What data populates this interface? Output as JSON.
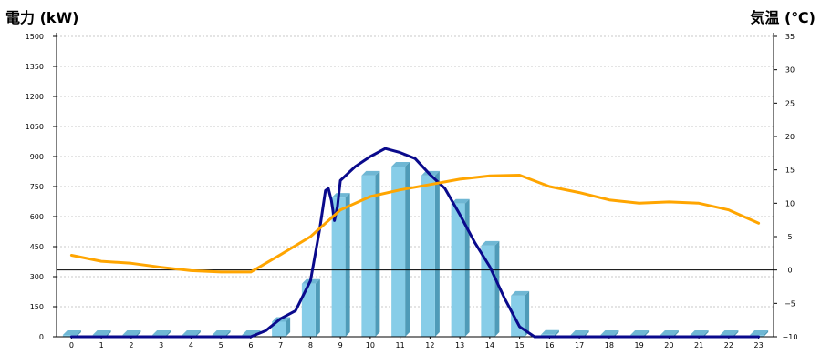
{
  "chart_data": {
    "type": "bar",
    "left_axis_title": "電力 (kW)",
    "right_axis_title": "気温 (℃)",
    "categories": [
      "0",
      "1",
      "2",
      "3",
      "4",
      "5",
      "6",
      "7",
      "8",
      "9",
      "10",
      "11",
      "12",
      "13",
      "14",
      "15",
      "16",
      "17",
      "18",
      "19",
      "20",
      "21",
      "22",
      "23"
    ],
    "y_left_ticks": [
      "0",
      "150",
      "300",
      "450",
      "600",
      "750",
      "900",
      "1050",
      "1200",
      "1350",
      "1500"
    ],
    "y_right_ticks": [
      "−10",
      "−5",
      "0",
      "5",
      "10",
      "15",
      "20",
      "25",
      "30",
      "35"
    ],
    "ylim_left": [
      0,
      1500
    ],
    "ylim_right": [
      -10,
      35
    ],
    "grid": true,
    "series": [
      {
        "kind": "bar",
        "axis": "left",
        "values": [
          0,
          0,
          0,
          0,
          0,
          0,
          0,
          75,
          265,
          695,
          805,
          850,
          805,
          665,
          455,
          205,
          10,
          0,
          0,
          0,
          0,
          0,
          0,
          0
        ]
      },
      {
        "kind": "line",
        "axis": "left",
        "x": [
          0,
          1,
          2,
          3,
          4,
          5,
          6,
          6.5,
          7,
          7.5,
          8,
          8.3,
          8.5,
          8.6,
          8.7,
          8.8,
          8.9,
          9,
          9.5,
          10,
          10.5,
          11,
          11.5,
          12,
          12.5,
          13,
          13.5,
          14,
          14.5,
          15,
          15.5,
          16,
          17,
          18,
          19,
          20,
          21,
          22,
          23
        ],
        "values": [
          0,
          0,
          0,
          0,
          0,
          0,
          0,
          30,
          90,
          130,
          280,
          530,
          730,
          740,
          680,
          580,
          650,
          780,
          850,
          900,
          940,
          920,
          890,
          810,
          740,
          610,
          470,
          350,
          190,
          50,
          0,
          0,
          0,
          0,
          0,
          0,
          0,
          0,
          0
        ]
      },
      {
        "kind": "line",
        "axis": "right",
        "x": [
          0,
          1,
          2,
          3,
          4,
          5,
          6,
          7,
          8,
          9,
          10,
          11,
          12,
          13,
          14,
          15,
          16,
          17,
          18,
          19,
          20,
          21,
          22,
          23
        ],
        "values": [
          2.2,
          1.3,
          1.0,
          0.4,
          -0.1,
          -0.3,
          -0.3,
          2.3,
          5.0,
          9.0,
          11.0,
          12.0,
          12.8,
          13.6,
          14.1,
          14.2,
          12.5,
          11.6,
          10.5,
          10.0,
          10.2,
          10.0,
          9.0,
          7.0
        ]
      }
    ],
    "colors": {
      "bar_front": "#87cde8",
      "bar_side": "#4f9bb8",
      "bar_top": "#6fb7d4",
      "power_line": "#0a0a8c",
      "temp_line": "#ffa500",
      "left_title": "#1a5fa0",
      "right_title": "#ff8c00",
      "grid": "#c8c8c8"
    }
  }
}
